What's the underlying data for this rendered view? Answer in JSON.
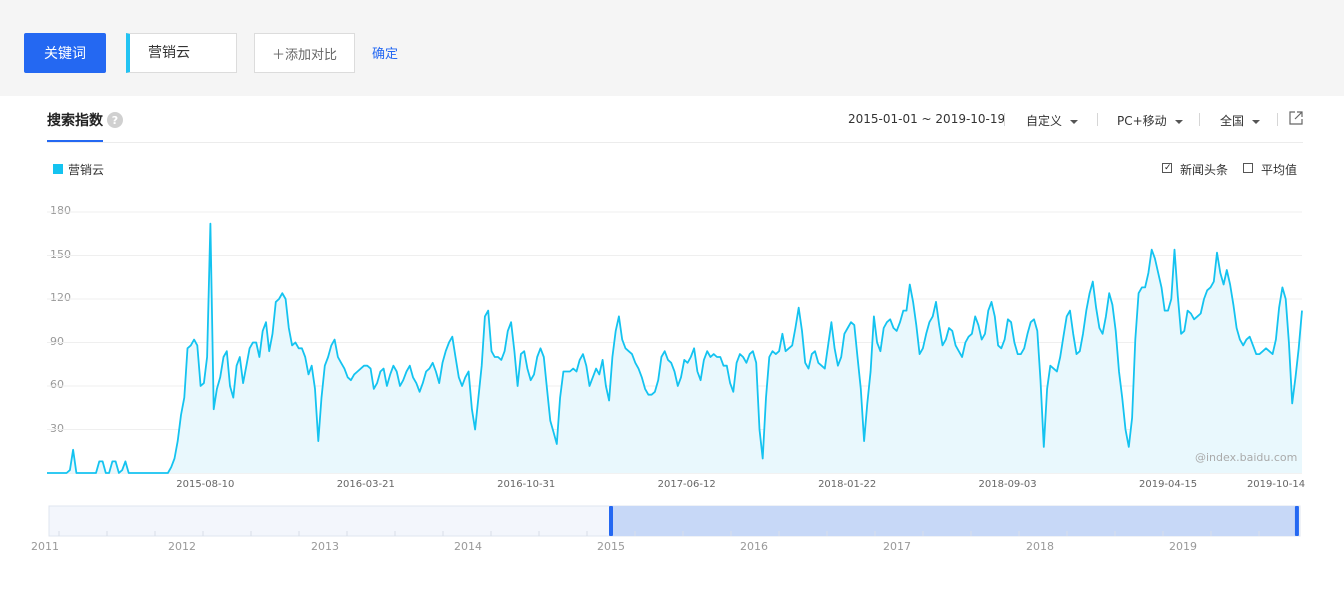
{
  "toolbar": {
    "keyword_btn": "关键词",
    "keyword_value": "营销云",
    "add_compare": "＋添加对比",
    "confirm": "确定"
  },
  "panel": {
    "title": "搜索指数",
    "help_glyph": "?",
    "date_range": "2015-01-01 ~ 2019-10-19",
    "custom": "自定义",
    "device": "PC+移动",
    "region": "全国",
    "options": [
      {
        "label": "新闻头条",
        "checked": true
      },
      {
        "label": "平均值",
        "checked": false
      }
    ],
    "watermark": "@index.baidu.com"
  },
  "colors": {
    "accent": "#2468f2",
    "series": "#14c3f0",
    "area": "#e9f8fd"
  },
  "icons": [
    "help-icon",
    "export-icon",
    "caret-down-icon",
    "checkbox-icon"
  ],
  "chart_data": {
    "type": "area",
    "series": [
      {
        "name": "营销云"
      }
    ],
    "ylim": [
      0,
      180
    ],
    "yticks": [
      "180",
      "150",
      "120",
      "90",
      "60",
      "30"
    ],
    "xticks": [
      "2015-08-10",
      "2016-03-21",
      "2016-10-31",
      "2017-06-12",
      "2018-01-22",
      "2018-09-03",
      "2019-04-15",
      "2019-10-14"
    ],
    "grid": true,
    "legend": "top-left",
    "x_start": "2015-01-01",
    "x_end": "2019-10-19",
    "values": [
      0,
      0,
      0,
      0,
      0,
      0,
      0,
      2,
      16,
      0,
      0,
      0,
      0,
      0,
      0,
      0,
      8,
      8,
      0,
      0,
      8,
      8,
      0,
      2,
      8,
      0,
      0,
      0,
      0,
      0,
      0,
      0,
      0,
      0,
      0,
      0,
      0,
      0,
      4,
      10,
      22,
      40,
      52,
      86,
      88,
      92,
      88,
      60,
      62,
      80,
      172,
      44,
      58,
      66,
      80,
      84,
      60,
      52,
      74,
      80,
      62,
      74,
      86,
      90,
      90,
      80,
      98,
      104,
      84,
      96,
      118,
      120,
      124,
      120,
      100,
      88,
      90,
      86,
      86,
      80,
      68,
      74,
      58,
      22,
      52,
      74,
      80,
      88,
      92,
      80,
      76,
      72,
      66,
      64,
      68,
      70,
      72,
      74,
      74,
      72,
      58,
      62,
      70,
      72,
      60,
      68,
      74,
      70,
      60,
      64,
      70,
      74,
      66,
      62,
      56,
      62,
      70,
      72,
      76,
      70,
      62,
      76,
      84,
      90,
      94,
      80,
      66,
      60,
      66,
      70,
      44,
      30,
      52,
      74,
      108,
      112,
      84,
      80,
      80,
      78,
      84,
      98,
      104,
      84,
      60,
      82,
      84,
      72,
      64,
      68,
      80,
      86,
      80,
      58,
      36,
      28,
      20,
      52,
      70,
      70,
      70,
      72,
      70,
      78,
      82,
      74,
      60,
      66,
      72,
      68,
      78,
      60,
      50,
      80,
      98,
      108,
      92,
      86,
      84,
      82,
      76,
      72,
      66,
      58,
      54,
      54,
      56,
      64,
      80,
      84,
      78,
      76,
      70,
      60,
      66,
      78,
      76,
      80,
      86,
      70,
      64,
      78,
      84,
      80,
      82,
      80,
      80,
      74,
      74,
      62,
      56,
      76,
      82,
      80,
      76,
      82,
      84,
      76,
      30,
      10,
      52,
      80,
      84,
      82,
      84,
      96,
      84,
      86,
      88,
      100,
      114,
      98,
      76,
      72,
      82,
      84,
      76,
      74,
      72,
      88,
      104,
      86,
      74,
      80,
      96,
      100,
      104,
      102,
      80,
      58,
      22,
      48,
      70,
      108,
      90,
      84,
      100,
      104,
      106,
      100,
      98,
      104,
      112,
      112,
      130,
      118,
      102,
      82,
      86,
      96,
      104,
      108,
      118,
      102,
      88,
      92,
      100,
      98,
      88,
      84,
      80,
      90,
      94,
      96,
      108,
      102,
      92,
      96,
      112,
      118,
      108,
      88,
      86,
      92,
      106,
      104,
      90,
      82,
      82,
      86,
      96,
      104,
      106,
      98,
      64,
      18,
      58,
      74,
      72,
      70,
      80,
      94,
      108,
      112,
      96,
      82,
      84,
      96,
      112,
      124,
      132,
      114,
      100,
      96,
      108,
      124,
      116,
      98,
      70,
      52,
      30,
      18,
      38,
      92,
      124,
      128,
      128,
      138,
      154,
      148,
      138,
      128,
      112,
      112,
      120,
      154,
      122,
      96,
      98,
      112,
      110,
      106,
      108,
      110,
      120,
      126,
      128,
      132,
      152,
      138,
      130,
      140,
      130,
      116,
      100,
      92,
      88,
      92,
      94,
      88,
      82,
      82,
      84,
      86,
      84,
      82,
      92,
      114,
      128,
      120,
      90,
      48,
      66,
      86,
      112
    ],
    "navigator": {
      "years": [
        "2011",
        "2012",
        "2013",
        "2014",
        "2015",
        "2016",
        "2017",
        "2018",
        "2019"
      ],
      "selection_start": "2015-01-01",
      "selection_end": "2019-10-19"
    }
  }
}
